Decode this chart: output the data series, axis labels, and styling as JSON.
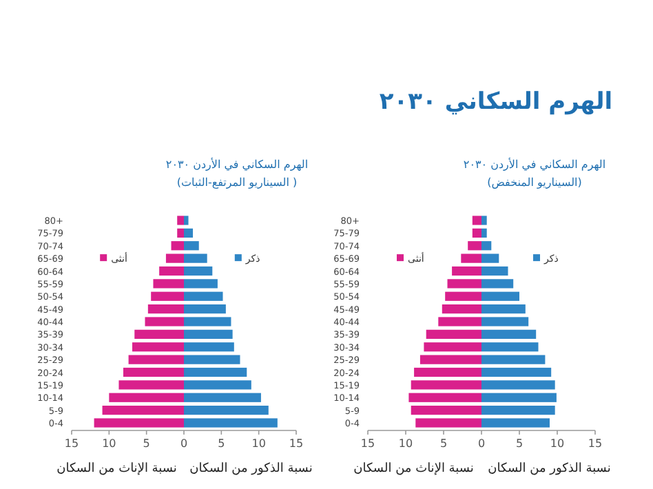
{
  "chart_data": [
    {
      "type": "bar",
      "orientation": "horizontal",
      "stacked": true,
      "title": "الهرم السكاني في الأردن ٢٠٣٠",
      "subtitle": "(السيناريو المنخفض)",
      "xlabel": "نسبة الذكور من السكان",
      "annotations": [
        "الهرم السكاني ٢٠٣٠",
        "نسبة الإناث من السكان"
      ],
      "categories": [
        "80+",
        "75-79",
        "70-74",
        "65-69",
        "60-64",
        "55-59",
        "50-54",
        "45-49",
        "40-44",
        "35-39",
        "30-34",
        "25-29",
        "20-24",
        "15-19",
        "10-14",
        "5-9",
        "0-4"
      ],
      "series": [
        {
          "name": "ذكر",
          "color": "#2f86c6",
          "values": [
            0.7,
            0.7,
            1.3,
            2.3,
            3.5,
            4.2,
            5.0,
            5.8,
            6.2,
            7.2,
            7.5,
            8.4,
            9.2,
            9.7,
            9.9,
            9.7,
            9.0
          ]
        },
        {
          "name": "أنثى",
          "color": "#d9208c",
          "values": [
            -1.2,
            -1.2,
            -1.8,
            -2.7,
            -3.9,
            -4.5,
            -4.8,
            -5.2,
            -5.7,
            -7.3,
            -7.6,
            -8.1,
            -8.9,
            -9.3,
            -9.6,
            -9.3,
            -8.7
          ]
        }
      ],
      "xlim": [
        -15,
        15
      ],
      "xticks": [
        {
          "value": -15,
          "label": "15"
        },
        {
          "value": -10,
          "label": "10"
        },
        {
          "value": -5,
          "label": "5"
        },
        0,
        5,
        10,
        15
      ],
      "legend": "top",
      "grid": false
    },
    {
      "type": "bar",
      "orientation": "horizontal",
      "stacked": true,
      "title": "الهرم السكاني في الأردن ٢٠٣٠",
      "subtitle": "(السيناريو المرتفع-الثبات )",
      "xlabel": "نسبة الذكور من السكان",
      "annotations": [
        "نسبة الإناث من السكان"
      ],
      "categories": [
        "80+",
        "75-79",
        "70-74",
        "65-69",
        "60-64",
        "55-59",
        "50-54",
        "45-49",
        "40-44",
        "35-39",
        "30-34",
        "25-29",
        "20-24",
        "15-19",
        "10-14",
        "5-9",
        "0-4"
      ],
      "series": [
        {
          "name": "ذكر",
          "color": "#2f86c6",
          "values": [
            0.6,
            1.2,
            2.0,
            3.1,
            3.8,
            4.5,
            5.2,
            5.6,
            6.3,
            6.5,
            6.7,
            7.5,
            8.4,
            9.0,
            10.3,
            11.3,
            12.5
          ]
        },
        {
          "name": "أنثى",
          "color": "#d9208c",
          "values": [
            -0.9,
            -0.9,
            -1.7,
            -2.4,
            -3.3,
            -4.1,
            -4.4,
            -4.8,
            -5.2,
            -6.6,
            -6.9,
            -7.4,
            -8.1,
            -8.7,
            -10.0,
            -10.9,
            -12.0
          ]
        }
      ],
      "xlim": [
        -15,
        15
      ],
      "xticks": [
        {
          "value": -15,
          "label": "15"
        },
        {
          "value": -10,
          "label": "10"
        },
        {
          "value": -5,
          "label": "5"
        },
        0,
        5,
        10,
        15
      ],
      "legend": "top",
      "grid": false
    }
  ]
}
